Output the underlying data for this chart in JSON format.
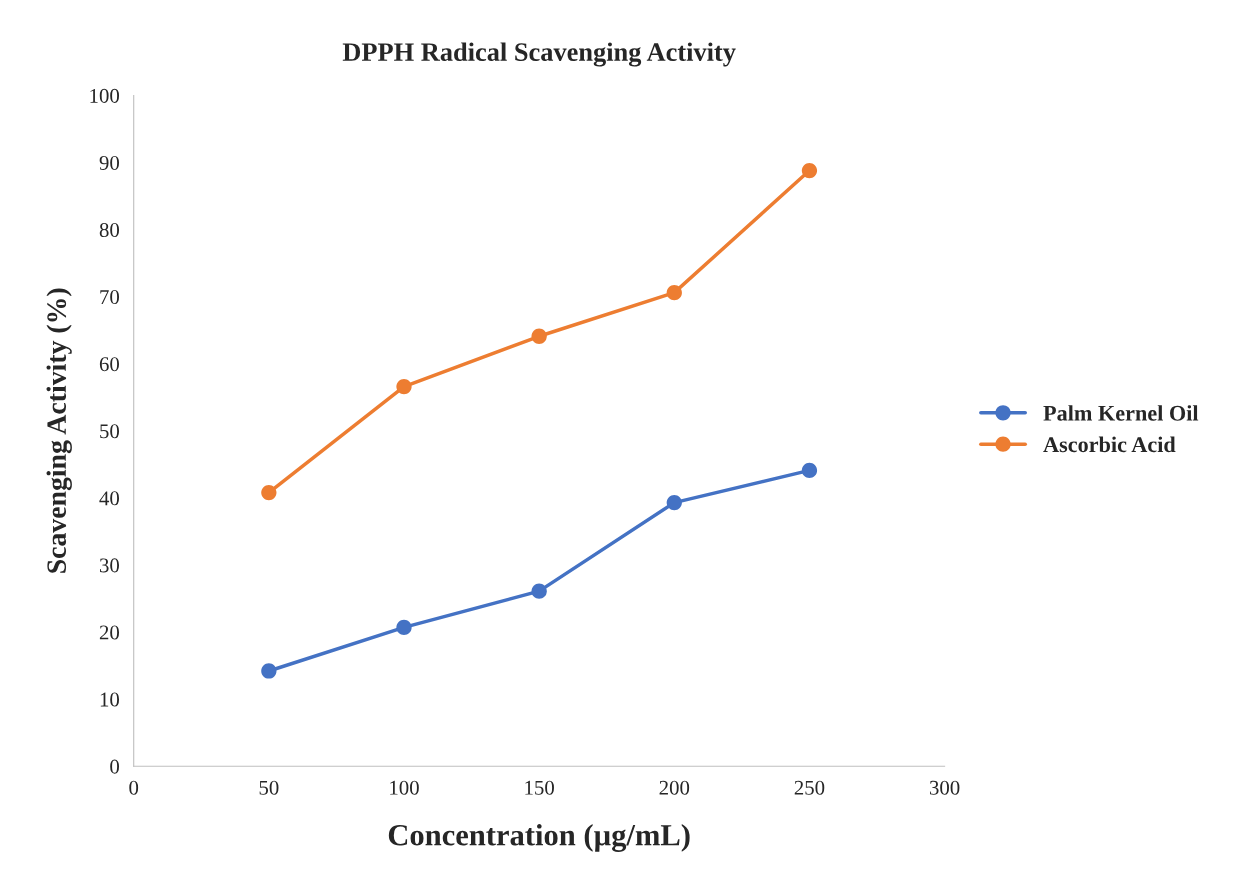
{
  "chart_data": {
    "type": "line",
    "title": "DPPH Radical Scavenging Activity",
    "xlabel": "Concentration (µg/mL)",
    "ylabel": "Scavenging Activity (%)",
    "x": [
      50,
      100,
      150,
      200,
      250
    ],
    "series": [
      {
        "name": "Palm Kernel Oil",
        "color": "#4472c4",
        "values": [
          14.2,
          20.7,
          26.1,
          39.3,
          44.1
        ]
      },
      {
        "name": "Ascorbic Acid",
        "color": "#ed7d31",
        "values": [
          40.8,
          56.6,
          64.1,
          70.6,
          88.8
        ]
      }
    ],
    "xlim": [
      0,
      300
    ],
    "xticks": [
      0,
      50,
      100,
      150,
      200,
      250,
      300
    ],
    "ylim": [
      0,
      100
    ],
    "yticks": [
      0,
      10,
      20,
      30,
      40,
      50,
      60,
      70,
      80,
      90,
      100
    ],
    "grid": false,
    "legend": "right",
    "marker": "circle",
    "line_style": "solid"
  }
}
